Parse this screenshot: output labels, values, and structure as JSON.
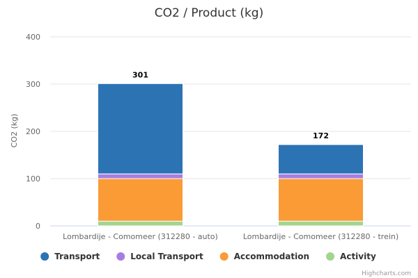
{
  "chart_data": {
    "type": "bar",
    "stacked": true,
    "title": "CO2 / Product (kg)",
    "ylabel": "CO2 (kg)",
    "xlabel": "",
    "ylim": [
      0,
      400
    ],
    "yticks": [
      0,
      100,
      200,
      300,
      400
    ],
    "grid": true,
    "legend_position": "bottom",
    "categories": [
      "Lombardije - Comomeer (312280 - auto)",
      "Lombardije - Comomeer (312280 - trein)"
    ],
    "totals": [
      301,
      172
    ],
    "series": [
      {
        "name": "Activity",
        "color": "#a3d58f",
        "values": [
          10,
          10
        ]
      },
      {
        "name": "Accommodation",
        "color": "#fa9b36",
        "values": [
          90,
          90
        ]
      },
      {
        "name": "Local Transport",
        "color": "#a77ee0",
        "values": [
          10,
          10
        ]
      },
      {
        "name": "Transport",
        "color": "#2c73b4",
        "values": [
          191,
          62
        ]
      }
    ],
    "legend_order": [
      "Transport",
      "Local Transport",
      "Accommodation",
      "Activity"
    ]
  },
  "credits": "Highcharts.com"
}
